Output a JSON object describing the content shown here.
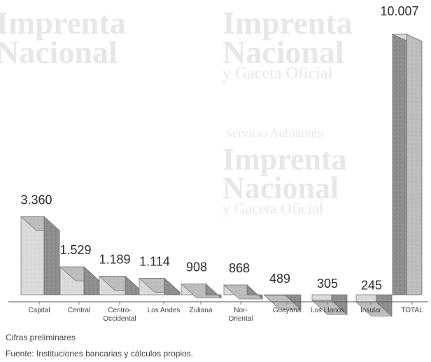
{
  "watermark": {
    "line1": "Servicio Autónomo",
    "line2": "Imprenta",
    "line3": "Nacional",
    "line4": "y Gaceta Oficial"
  },
  "chart_data": {
    "type": "bar",
    "categories": [
      "Capital",
      "Central",
      "Centro-Occidental",
      "Los Andes",
      "Zuliana",
      "Nor-Oriental",
      "Guayana",
      "Los Llanos",
      "Insular",
      "TOTAL"
    ],
    "category_lines": [
      [
        "Capital"
      ],
      [
        "Central"
      ],
      [
        "Centro-",
        "Occidental"
      ],
      [
        "Los Andes"
      ],
      [
        "Zuliana"
      ],
      [
        "Nor-",
        "Oriental"
      ],
      [
        "Guayana"
      ],
      [
        "Los Llanos"
      ],
      [
        "Insular"
      ],
      [
        "TOTAL"
      ]
    ],
    "values": [
      3360,
      1529,
      1189,
      1114,
      908,
      868,
      489,
      305,
      245,
      10007
    ],
    "value_labels": [
      "3.360",
      "1.529",
      "1.189",
      "1.114",
      "908",
      "868",
      "489",
      "305",
      "245",
      "10.007"
    ],
    "title": "",
    "xlabel": "",
    "ylabel": "",
    "ylim": [
      0,
      10007
    ],
    "grid": false
  },
  "notes": {
    "preliminary": "Cifras preliminares",
    "source": "Fuente: Instituciones bancarias y cálculos propios."
  }
}
